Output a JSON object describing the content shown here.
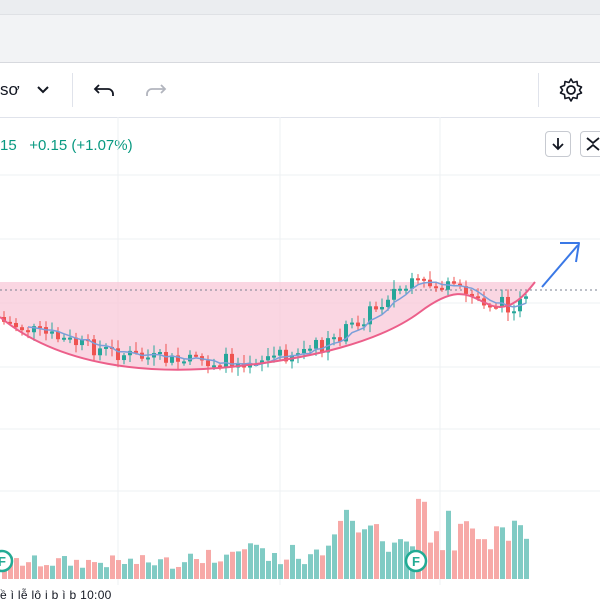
{
  "toolbar": {
    "symbol_text": "sơ",
    "dropdown_icon": "chevron-down-icon",
    "undo_icon": "undo-icon",
    "redo_icon": "redo-icon",
    "settings_icon": "gear-icon"
  },
  "header": {
    "price_fragment": "15",
    "change_text": "+0.15 (+1.07%)"
  },
  "side_buttons": {
    "download_icon": "arrow-down-icon",
    "collapse_icon": "collapse-icon"
  },
  "markers": [
    "F"
  ],
  "bottom_text": "ề ì lễ lô i b ì b 10:00",
  "colors": {
    "up": "#26a69a",
    "down": "#ef5350",
    "ma": "#7b9fd9",
    "pattern_fill": "#f8c8d8",
    "pattern_stroke": "#ec5f8a",
    "arrow": "#3a78e6"
  }
}
